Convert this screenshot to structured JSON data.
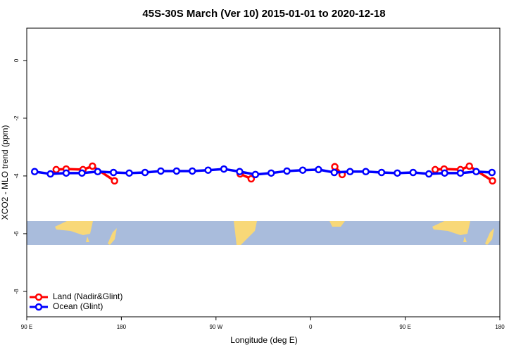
{
  "chart_data": {
    "type": "line",
    "title": "45S-30S March (Ver 10)   2015-01-01 to 2020-12-18",
    "x_label": "Longitude (deg E)",
    "y_label": "XCO2 - MLO trend (ppm)",
    "xlim": [
      90,
      540
    ],
    "ylim": [
      -8.88,
      1.12
    ],
    "xticks": [
      {
        "value": 90,
        "label": "90 E"
      },
      {
        "value": 180,
        "label": "180"
      },
      {
        "value": 270,
        "label": "90 W"
      },
      {
        "value": 360,
        "label": "0"
      },
      {
        "value": 450,
        "label": "90 E"
      },
      {
        "value": 540,
        "label": "180"
      }
    ],
    "yticks": [
      0,
      -2,
      -4,
      -6,
      -8
    ],
    "legend": "bottom-left",
    "series": [
      {
        "name": "Land (Nadir&Glint)",
        "color": "#ff0000",
        "x": [
          118,
          127.5,
          143.5,
          152.5,
          173.5,
          null,
          293,
          303.5,
          null,
          383,
          390,
          null,
          478.5,
          487,
          502.5,
          511,
          533
        ],
        "values": [
          -3.78,
          -3.76,
          -3.78,
          -3.66,
          -4.17,
          null,
          -3.93,
          -4.1,
          null,
          -3.68,
          -3.95,
          null,
          -3.78,
          -3.76,
          -3.78,
          -3.66,
          -4.17
        ]
      },
      {
        "name": "Ocean (Glint)",
        "color": "#0000ff",
        "x": [
          97.5,
          112.5,
          127.5,
          142.5,
          157.5,
          172.5,
          187.5,
          202.5,
          217.5,
          232.5,
          247.5,
          262.5,
          277.5,
          292.5,
          307.5,
          322.5,
          337.5,
          352.5,
          367.5,
          382.5,
          397.5,
          412.5,
          427.5,
          442.5,
          457.5,
          472.5,
          487.5,
          502.5,
          517.5,
          532.5
        ],
        "values": [
          -3.85,
          -3.93,
          -3.9,
          -3.9,
          -3.85,
          -3.88,
          -3.9,
          -3.88,
          -3.83,
          -3.83,
          -3.83,
          -3.8,
          -3.76,
          -3.85,
          -3.95,
          -3.9,
          -3.83,
          -3.8,
          -3.78,
          -3.88,
          -3.85,
          -3.85,
          -3.88,
          -3.9,
          -3.88,
          -3.93,
          -3.9,
          -3.9,
          -3.85,
          -3.88
        ]
      }
    ]
  }
}
